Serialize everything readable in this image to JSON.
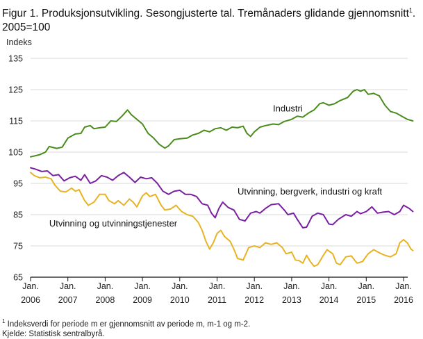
{
  "title": {
    "main": "Figur 1. Produksjonsutvikling. Sesongjusterte tal. Tremånaders glidande gjennomsnitt",
    "sup": "1",
    "tail": ". 2005=100"
  },
  "footnote": {
    "sup": "1",
    "text": " Indeksverdi for periode m er gjennomsnitt av periode m, m-1 og m-2.",
    "source": "Kjelde: Statistisk sentralbyrå."
  },
  "chart_data": {
    "type": "line",
    "ylabel": "Indeks",
    "ylim": [
      65,
      135
    ],
    "yticks": [
      65,
      75,
      85,
      95,
      105,
      115,
      125,
      135
    ],
    "xlim": [
      2006,
      2016.25
    ],
    "xticks": [
      {
        "year": 2006,
        "top": "Jan.",
        "bottom": "2006"
      },
      {
        "year": 2007,
        "top": "Jan.",
        "bottom": "2007"
      },
      {
        "year": 2008,
        "top": "Jan.",
        "bottom": "2008"
      },
      {
        "year": 2009,
        "top": "Jan.",
        "bottom": "2009"
      },
      {
        "year": 2010,
        "top": "Jan.",
        "bottom": "2010"
      },
      {
        "year": 2011,
        "top": "Jan.",
        "bottom": "2011"
      },
      {
        "year": 2012,
        "top": "Jan.",
        "bottom": "2012"
      },
      {
        "year": 2013,
        "top": "Jan.",
        "bottom": "2013"
      },
      {
        "year": 2014,
        "top": "Jan.",
        "bottom": "2014"
      },
      {
        "year": 2015,
        "top": "Jan.",
        "bottom": "2015"
      },
      {
        "year": 2016,
        "top": "Jan.",
        "bottom": "2016"
      }
    ],
    "grid": "horizontal",
    "series": [
      {
        "name": "Industri",
        "color": "#4a8c1c",
        "points": [
          [
            2006.0,
            103.5
          ],
          [
            2006.25,
            104.2
          ],
          [
            2006.4,
            105.0
          ],
          [
            2006.5,
            106.8
          ],
          [
            2006.7,
            106.2
          ],
          [
            2006.85,
            106.6
          ],
          [
            2007.0,
            109.5
          ],
          [
            2007.2,
            110.8
          ],
          [
            2007.35,
            111.0
          ],
          [
            2007.45,
            113.0
          ],
          [
            2007.6,
            113.5
          ],
          [
            2007.7,
            112.5
          ],
          [
            2007.85,
            112.8
          ],
          [
            2008.0,
            113.0
          ],
          [
            2008.15,
            115.0
          ],
          [
            2008.3,
            114.8
          ],
          [
            2008.45,
            116.5
          ],
          [
            2008.6,
            118.5
          ],
          [
            2008.7,
            117.0
          ],
          [
            2008.85,
            115.5
          ],
          [
            2009.0,
            114.0
          ],
          [
            2009.15,
            111.0
          ],
          [
            2009.3,
            109.5
          ],
          [
            2009.45,
            107.5
          ],
          [
            2009.6,
            106.3
          ],
          [
            2009.7,
            107.0
          ],
          [
            2009.85,
            109.0
          ],
          [
            2010.0,
            109.3
          ],
          [
            2010.2,
            109.5
          ],
          [
            2010.35,
            110.5
          ],
          [
            2010.5,
            111.0
          ],
          [
            2010.65,
            112.0
          ],
          [
            2010.8,
            111.5
          ],
          [
            2010.95,
            112.5
          ],
          [
            2011.1,
            112.8
          ],
          [
            2011.25,
            112.0
          ],
          [
            2011.4,
            113.0
          ],
          [
            2011.55,
            112.8
          ],
          [
            2011.7,
            113.3
          ],
          [
            2011.8,
            111.0
          ],
          [
            2011.9,
            110.0
          ],
          [
            2012.0,
            111.5
          ],
          [
            2012.15,
            113.0
          ],
          [
            2012.3,
            113.5
          ],
          [
            2012.5,
            114.0
          ],
          [
            2012.65,
            113.8
          ],
          [
            2012.8,
            114.8
          ],
          [
            2013.0,
            115.5
          ],
          [
            2013.15,
            116.5
          ],
          [
            2013.3,
            116.2
          ],
          [
            2013.45,
            117.5
          ],
          [
            2013.6,
            118.5
          ],
          [
            2013.75,
            120.5
          ],
          [
            2013.85,
            120.8
          ],
          [
            2014.0,
            120.0
          ],
          [
            2014.15,
            120.5
          ],
          [
            2014.3,
            121.5
          ],
          [
            2014.5,
            122.5
          ],
          [
            2014.65,
            124.5
          ],
          [
            2014.75,
            125.0
          ],
          [
            2014.85,
            124.5
          ],
          [
            2014.95,
            125.0
          ],
          [
            2015.05,
            123.5
          ],
          [
            2015.2,
            123.8
          ],
          [
            2015.35,
            123.0
          ],
          [
            2015.5,
            120.0
          ],
          [
            2015.65,
            118.0
          ],
          [
            2015.8,
            117.5
          ],
          [
            2015.95,
            116.5
          ],
          [
            2016.1,
            115.5
          ],
          [
            2016.25,
            115.0
          ]
        ]
      },
      {
        "name": "Utvinning, bergverk, industri og kraft",
        "color": "#7b1fa2",
        "points": [
          [
            2006.0,
            100.0
          ],
          [
            2006.15,
            99.5
          ],
          [
            2006.3,
            98.8
          ],
          [
            2006.45,
            99.0
          ],
          [
            2006.6,
            97.5
          ],
          [
            2006.75,
            97.8
          ],
          [
            2006.9,
            95.8
          ],
          [
            2007.05,
            96.8
          ],
          [
            2007.2,
            97.3
          ],
          [
            2007.35,
            96.0
          ],
          [
            2007.45,
            97.8
          ],
          [
            2007.6,
            95.0
          ],
          [
            2007.75,
            95.8
          ],
          [
            2007.9,
            97.5
          ],
          [
            2008.05,
            97.0
          ],
          [
            2008.2,
            96.0
          ],
          [
            2008.35,
            97.5
          ],
          [
            2008.5,
            98.5
          ],
          [
            2008.65,
            97.0
          ],
          [
            2008.8,
            95.3
          ],
          [
            2008.95,
            97.0
          ],
          [
            2009.1,
            96.5
          ],
          [
            2009.25,
            96.8
          ],
          [
            2009.4,
            95.0
          ],
          [
            2009.55,
            92.5
          ],
          [
            2009.7,
            91.5
          ],
          [
            2009.85,
            92.5
          ],
          [
            2010.0,
            92.8
          ],
          [
            2010.15,
            91.5
          ],
          [
            2010.3,
            91.5
          ],
          [
            2010.45,
            90.8
          ],
          [
            2010.6,
            88.5
          ],
          [
            2010.75,
            88.0
          ],
          [
            2010.85,
            85.5
          ],
          [
            2010.95,
            84.0
          ],
          [
            2011.05,
            87.0
          ],
          [
            2011.15,
            89.0
          ],
          [
            2011.3,
            87.3
          ],
          [
            2011.45,
            86.5
          ],
          [
            2011.6,
            83.5
          ],
          [
            2011.75,
            83.0
          ],
          [
            2011.9,
            85.5
          ],
          [
            2012.05,
            86.0
          ],
          [
            2012.15,
            85.5
          ],
          [
            2012.3,
            87.0
          ],
          [
            2012.45,
            88.2
          ],
          [
            2012.65,
            88.5
          ],
          [
            2012.8,
            86.5
          ],
          [
            2012.9,
            85.0
          ],
          [
            2013.05,
            85.5
          ],
          [
            2013.15,
            83.5
          ],
          [
            2013.3,
            80.8
          ],
          [
            2013.4,
            81.0
          ],
          [
            2013.55,
            84.5
          ],
          [
            2013.7,
            85.5
          ],
          [
            2013.85,
            85.0
          ],
          [
            2014.0,
            82.0
          ],
          [
            2014.1,
            81.8
          ],
          [
            2014.25,
            83.5
          ],
          [
            2014.45,
            85.0
          ],
          [
            2014.6,
            84.5
          ],
          [
            2014.75,
            86.0
          ],
          [
            2014.85,
            85.3
          ],
          [
            2015.0,
            86.0
          ],
          [
            2015.15,
            87.5
          ],
          [
            2015.3,
            85.5
          ],
          [
            2015.45,
            85.8
          ],
          [
            2015.6,
            86.0
          ],
          [
            2015.75,
            85.0
          ],
          [
            2015.9,
            86.0
          ],
          [
            2016.0,
            88.0
          ],
          [
            2016.15,
            87.0
          ],
          [
            2016.25,
            86.0
          ]
        ]
      },
      {
        "name": "Utvinning og utvinningstjenester",
        "color": "#e8b323",
        "points": [
          [
            2006.0,
            98.5
          ],
          [
            2006.1,
            97.5
          ],
          [
            2006.25,
            96.8
          ],
          [
            2006.4,
            97.0
          ],
          [
            2006.55,
            96.5
          ],
          [
            2006.65,
            94.5
          ],
          [
            2006.8,
            92.5
          ],
          [
            2006.95,
            92.3
          ],
          [
            2007.1,
            93.5
          ],
          [
            2007.2,
            92.5
          ],
          [
            2007.3,
            93.0
          ],
          [
            2007.45,
            89.5
          ],
          [
            2007.55,
            88.0
          ],
          [
            2007.7,
            89.0
          ],
          [
            2007.85,
            91.5
          ],
          [
            2008.0,
            91.5
          ],
          [
            2008.1,
            89.5
          ],
          [
            2008.25,
            88.5
          ],
          [
            2008.35,
            89.5
          ],
          [
            2008.5,
            88.0
          ],
          [
            2008.65,
            90.0
          ],
          [
            2008.75,
            89.0
          ],
          [
            2008.85,
            87.5
          ],
          [
            2009.0,
            91.0
          ],
          [
            2009.1,
            92.0
          ],
          [
            2009.2,
            90.8
          ],
          [
            2009.35,
            91.5
          ],
          [
            2009.5,
            88.0
          ],
          [
            2009.6,
            86.5
          ],
          [
            2009.75,
            86.8
          ],
          [
            2009.9,
            88.0
          ],
          [
            2010.05,
            86.0
          ],
          [
            2010.2,
            85.0
          ],
          [
            2010.35,
            84.5
          ],
          [
            2010.5,
            82.5
          ],
          [
            2010.6,
            80.0
          ],
          [
            2010.7,
            76.5
          ],
          [
            2010.8,
            74.0
          ],
          [
            2010.9,
            76.0
          ],
          [
            2011.0,
            79.0
          ],
          [
            2011.1,
            80.0
          ],
          [
            2011.2,
            78.0
          ],
          [
            2011.35,
            76.5
          ],
          [
            2011.45,
            74.0
          ],
          [
            2011.55,
            71.0
          ],
          [
            2011.7,
            70.5
          ],
          [
            2011.85,
            74.5
          ],
          [
            2012.0,
            75.0
          ],
          [
            2012.15,
            74.5
          ],
          [
            2012.3,
            76.0
          ],
          [
            2012.45,
            75.5
          ],
          [
            2012.6,
            76.0
          ],
          [
            2012.75,
            74.5
          ],
          [
            2012.85,
            72.5
          ],
          [
            2013.0,
            73.0
          ],
          [
            2013.1,
            70.5
          ],
          [
            2013.2,
            70.3
          ],
          [
            2013.3,
            69.5
          ],
          [
            2013.4,
            72.0
          ],
          [
            2013.5,
            70.0
          ],
          [
            2013.6,
            68.5
          ],
          [
            2013.7,
            69.0
          ],
          [
            2013.85,
            72.0
          ],
          [
            2013.95,
            73.8
          ],
          [
            2014.1,
            72.5
          ],
          [
            2014.2,
            69.5
          ],
          [
            2014.3,
            69.0
          ],
          [
            2014.45,
            71.5
          ],
          [
            2014.6,
            71.8
          ],
          [
            2014.75,
            69.5
          ],
          [
            2014.9,
            70.0
          ],
          [
            2015.05,
            72.5
          ],
          [
            2015.2,
            73.8
          ],
          [
            2015.35,
            72.8
          ],
          [
            2015.5,
            72.0
          ],
          [
            2015.65,
            71.5
          ],
          [
            2015.8,
            72.5
          ],
          [
            2015.9,
            76.0
          ],
          [
            2016.0,
            77.0
          ],
          [
            2016.1,
            76.0
          ],
          [
            2016.2,
            74.0
          ],
          [
            2016.25,
            73.5
          ]
        ]
      }
    ],
    "annotations": [
      {
        "text": "Industri",
        "x": 2012.5,
        "y": 118
      },
      {
        "text": "Utvinning, bergverk, industri og kraft",
        "x": 2011.55,
        "y": 91.5
      },
      {
        "text": "Utvinning og utvinningstjenester",
        "x": 2006.5,
        "y": 81.2
      }
    ]
  }
}
